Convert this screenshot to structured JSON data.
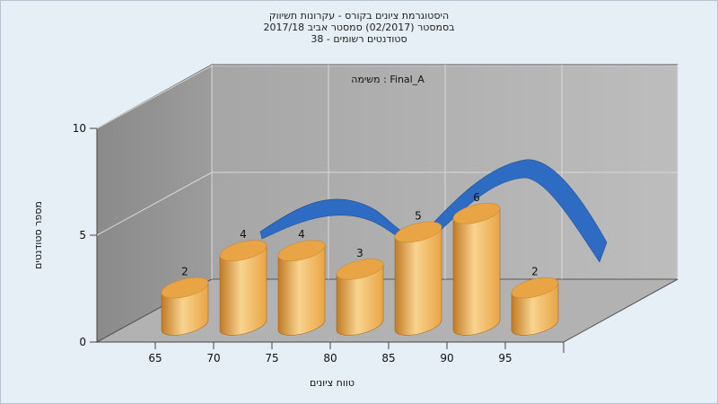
{
  "chart_data": {
    "type": "bar",
    "title_lines": [
      "היסטוגרמת ציונים בקורס - עקרונות תשיווק",
      "בסמסטר  (02/2017)  סמסטר אביב 2017/18",
      "סטודנטים רשומים - 38"
    ],
    "subtitle": "משימה : Final_A",
    "xlabel": "טווח ציונים",
    "ylabel": "מספר סטודנטים",
    "categories": [
      "65",
      "70",
      "75",
      "80",
      "85",
      "90",
      "95"
    ],
    "values": [
      2,
      4,
      4,
      3,
      5,
      6,
      2
    ],
    "yticks": [
      0,
      5,
      10
    ],
    "ylim": [
      0,
      10
    ],
    "grid": true,
    "bar_shape": "cylinder",
    "colors": {
      "bar": "#e9a445",
      "bar_light": "#f8d48f",
      "bar_dark": "#c17a25",
      "curve": "#2e6cc3",
      "wall": "#a9a9a9",
      "floor": "#b4b4b4"
    }
  }
}
